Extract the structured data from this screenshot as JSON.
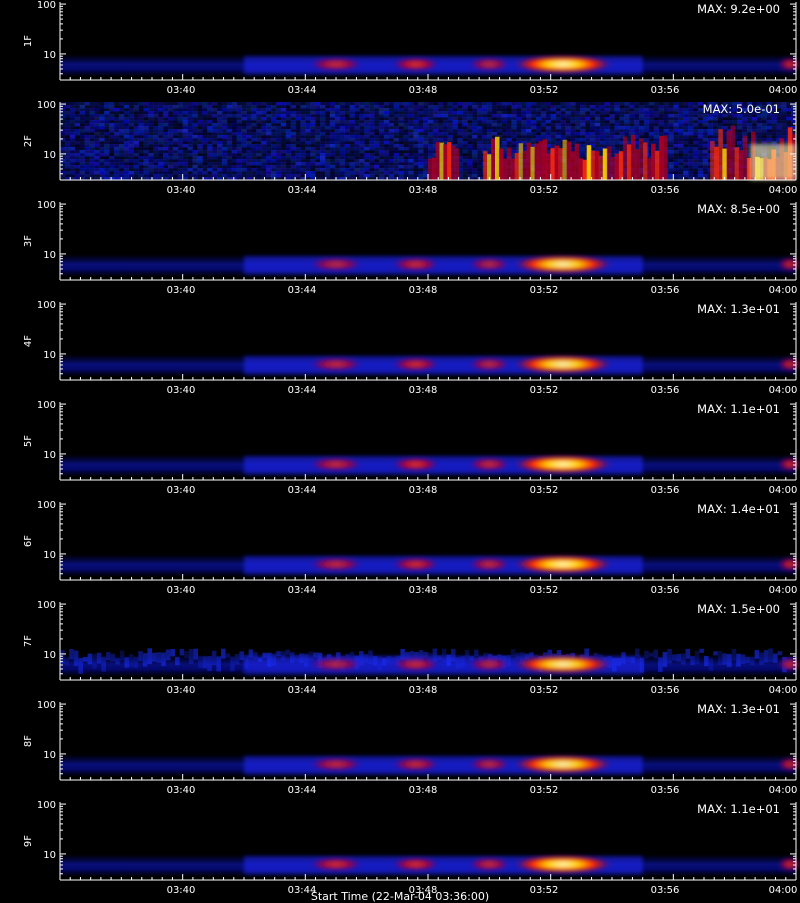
{
  "chart_data": {
    "type": "heatmap",
    "x_ticks": [
      "03:40",
      "03:44",
      "03:48",
      "03:52",
      "03:56",
      "04:00"
    ],
    "y_ticks": [
      "10",
      "100"
    ],
    "ylim": [
      3,
      110
    ],
    "scale": "log",
    "panels": [
      {
        "label": "1F",
        "max_label": "MAX: 9.2e+00",
        "pattern": "band",
        "band": [
          [
            8.3,
            9.7,
            0.65
          ],
          [
            11,
            12.2,
            0.8
          ],
          [
            13.5,
            14.5,
            0.5
          ],
          [
            15,
            17.8,
            1.0
          ],
          [
            23.6,
            24,
            0.6
          ]
        ]
      },
      {
        "label": "2F",
        "max_label": "MAX: 5.0e-01",
        "pattern": "noise"
      },
      {
        "label": "3F",
        "max_label": "MAX: 8.5e+00",
        "pattern": "band",
        "band": [
          [
            8.3,
            9.7,
            0.5
          ],
          [
            11,
            12.2,
            0.65
          ],
          [
            13.5,
            14.5,
            0.45
          ],
          [
            15,
            17.8,
            0.95
          ],
          [
            23.6,
            24,
            0.55
          ]
        ]
      },
      {
        "label": "4F",
        "max_label": "MAX: 1.3e+01",
        "pattern": "band",
        "band": [
          [
            8.3,
            9.7,
            0.55
          ],
          [
            11,
            12.2,
            0.7
          ],
          [
            13.5,
            14.5,
            0.5
          ],
          [
            15,
            17.8,
            0.95
          ],
          [
            23.6,
            24,
            0.55
          ]
        ]
      },
      {
        "label": "5F",
        "max_label": "MAX: 1.1e+01",
        "pattern": "band",
        "band": [
          [
            8.3,
            9.7,
            0.6
          ],
          [
            11,
            12.2,
            0.8
          ],
          [
            13.5,
            14.5,
            0.6
          ],
          [
            15,
            17.8,
            1.0
          ],
          [
            23.6,
            24,
            0.6
          ]
        ]
      },
      {
        "label": "6F",
        "max_label": "MAX: 1.4e+01",
        "pattern": "band",
        "band": [
          [
            8.3,
            9.7,
            0.55
          ],
          [
            11,
            12.2,
            0.7
          ],
          [
            13.5,
            14.5,
            0.55
          ],
          [
            15,
            17.8,
            1.0
          ],
          [
            23.6,
            24,
            0.6
          ]
        ]
      },
      {
        "label": "7F",
        "max_label": "MAX: 1.5e+00",
        "pattern": "band_noisy",
        "band": [
          [
            8.3,
            9.7,
            0.45
          ],
          [
            11,
            12.2,
            0.6
          ],
          [
            13.5,
            14.5,
            0.5
          ],
          [
            15,
            17.8,
            0.95
          ],
          [
            23.6,
            24,
            0.5
          ]
        ]
      },
      {
        "label": "8F",
        "max_label": "MAX: 1.3e+01",
        "pattern": "band",
        "band": [
          [
            8.3,
            9.7,
            0.55
          ],
          [
            11,
            12.2,
            0.6
          ],
          [
            13.5,
            14.5,
            0.5
          ],
          [
            15,
            17.8,
            0.95
          ],
          [
            23.6,
            24,
            0.55
          ]
        ]
      },
      {
        "label": "9F",
        "max_label": "MAX: 1.1e+01",
        "pattern": "band",
        "band": [
          [
            8.3,
            9.7,
            0.7
          ],
          [
            11,
            12.2,
            0.75
          ],
          [
            13.5,
            14.5,
            0.6
          ],
          [
            15,
            17.8,
            1.0
          ],
          [
            23.6,
            24,
            0.65
          ]
        ]
      }
    ],
    "x_axis_title": "Start Time (22-Mar-04 03:36:00)"
  }
}
